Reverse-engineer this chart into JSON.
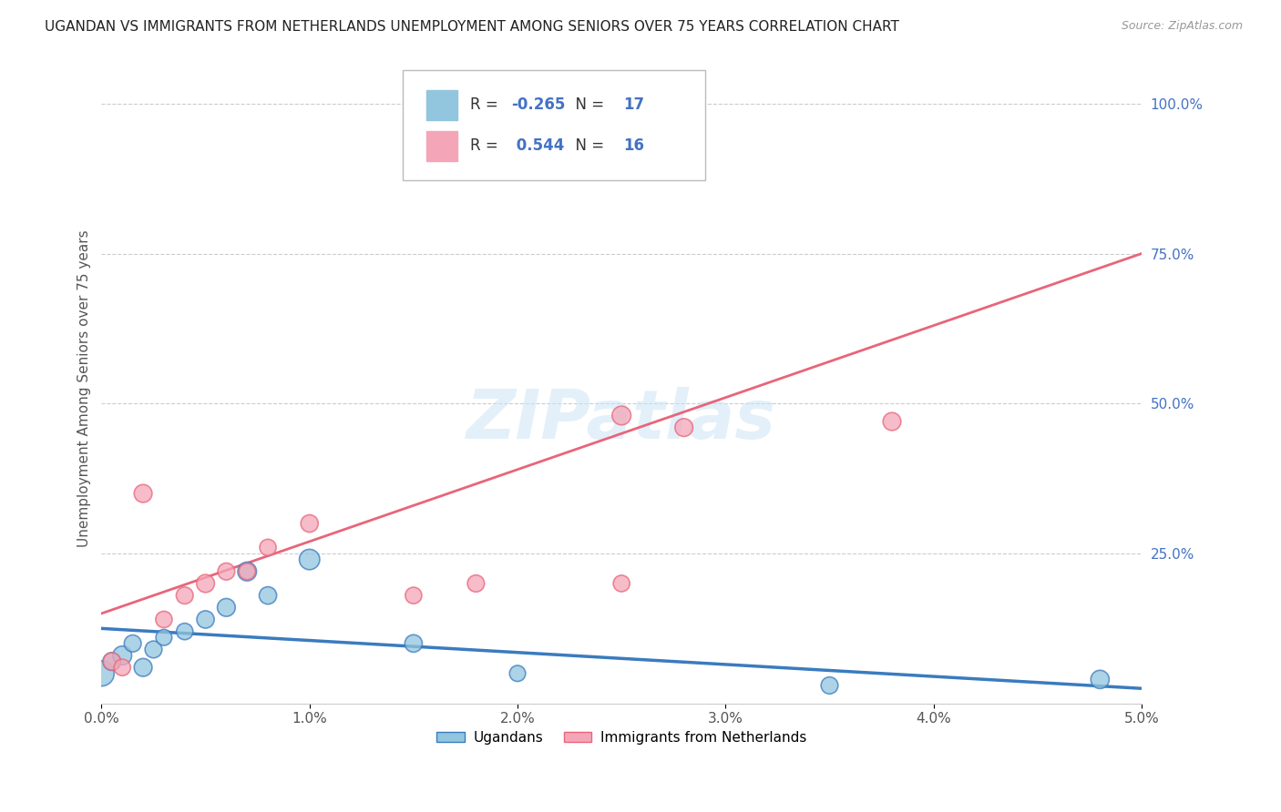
{
  "title": "UGANDAN VS IMMIGRANTS FROM NETHERLANDS UNEMPLOYMENT AMONG SENIORS OVER 75 YEARS CORRELATION CHART",
  "source": "Source: ZipAtlas.com",
  "ylabel": "Unemployment Among Seniors over 75 years",
  "xtick_labels": [
    "0.0%",
    "1.0%",
    "2.0%",
    "3.0%",
    "4.0%",
    "5.0%"
  ],
  "xtick_values": [
    0.0,
    1.0,
    2.0,
    3.0,
    4.0,
    5.0
  ],
  "ytick_labels_right": [
    "25.0%",
    "50.0%",
    "75.0%",
    "100.0%"
  ],
  "ytick_values_right": [
    25.0,
    50.0,
    75.0,
    100.0
  ],
  "xlim": [
    0.0,
    5.0
  ],
  "ylim": [
    0.0,
    105.0
  ],
  "legend_labels": [
    "Ugandans",
    "Immigrants from Netherlands"
  ],
  "legend_R": [
    -0.265,
    0.544
  ],
  "legend_N": [
    17,
    16
  ],
  "blue_color": "#92c5de",
  "pink_color": "#f4a6b8",
  "blue_line_color": "#3a7bbf",
  "pink_line_color": "#e8657a",
  "watermark": "ZIPatlas",
  "ugandan_x": [
    0.0,
    0.05,
    0.1,
    0.15,
    0.2,
    0.25,
    0.3,
    0.4,
    0.5,
    0.6,
    0.7,
    0.8,
    1.0,
    1.5,
    2.0,
    3.5,
    4.8
  ],
  "ugandan_y": [
    5.0,
    7.0,
    8.0,
    10.0,
    6.0,
    9.0,
    11.0,
    12.0,
    14.0,
    16.0,
    22.0,
    18.0,
    24.0,
    10.0,
    5.0,
    3.0,
    4.0
  ],
  "ugandan_sizes": [
    400,
    200,
    220,
    180,
    200,
    180,
    160,
    170,
    190,
    200,
    220,
    190,
    260,
    190,
    160,
    180,
    210
  ],
  "netherlands_x": [
    0.05,
    0.1,
    0.2,
    0.3,
    0.4,
    0.5,
    0.6,
    0.7,
    0.8,
    1.0,
    1.5,
    1.8,
    2.5,
    2.8,
    3.8,
    2.5
  ],
  "netherlands_y": [
    7.0,
    6.0,
    35.0,
    14.0,
    18.0,
    20.0,
    22.0,
    22.0,
    26.0,
    30.0,
    18.0,
    20.0,
    48.0,
    46.0,
    47.0,
    20.0
  ],
  "netherlands_sizes": [
    190,
    170,
    200,
    170,
    180,
    200,
    180,
    170,
    170,
    190,
    170,
    180,
    220,
    200,
    200,
    170
  ],
  "blue_line_x0": 0.0,
  "blue_line_y0": 12.5,
  "blue_line_x1": 5.0,
  "blue_line_y1": 2.5,
  "pink_line_x0": 0.0,
  "pink_line_y0": 15.0,
  "pink_line_x1": 5.0,
  "pink_line_y1": 75.0
}
